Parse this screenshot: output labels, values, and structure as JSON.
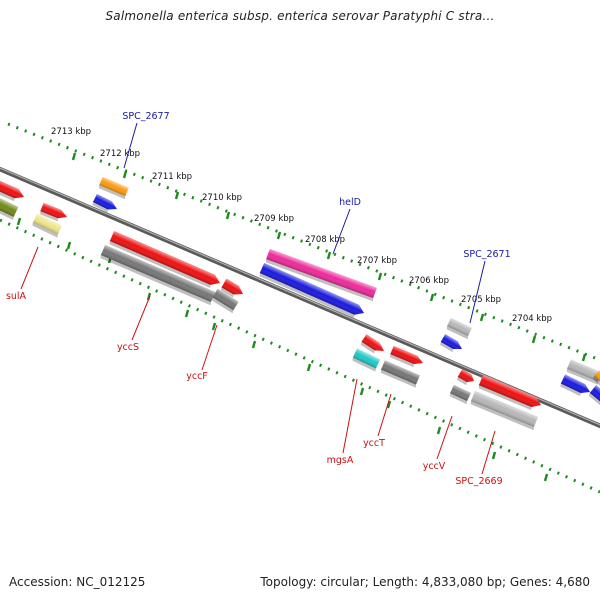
{
  "title": "Salmonella enterica subsp. enterica serovar Paratyphi C stra...",
  "footer": {
    "accession": "Accession: NC_012125",
    "summary": "Topology: circular; Length: 4,833,080 bp; Genes: 4,680"
  },
  "kbp_labels": [
    "2713 kbp",
    "2712 kbp",
    "2711 kbp",
    "2710 kbp",
    "2709 kbp",
    "2708 kbp",
    "2707 kbp",
    "2706 kbp",
    "2705 kbp",
    "2704 kbp"
  ],
  "top_gene_labels": [
    "SPC_2677",
    "helD",
    "SPC_2671"
  ],
  "bottom_gene_labels": [
    "sulA",
    "yccS",
    "yccF",
    "mgsA",
    "yccT",
    "yccV",
    "SPC_2669"
  ],
  "colors": {
    "backbone": "#7f7f7f",
    "ticks": "#1f8a1f",
    "top_label": "#1a1aa8",
    "bottom_label": "#cc1111",
    "red": "#ee1111",
    "blue": "#1a1ae0",
    "gray": "#777777",
    "light_gray": "#b8b8b8",
    "magenta": "#ee2a9a",
    "orange": "#ff9a10",
    "cyan": "#20c8c8",
    "olive": "#6f8a1a",
    "khaki": "#eee58a"
  }
}
